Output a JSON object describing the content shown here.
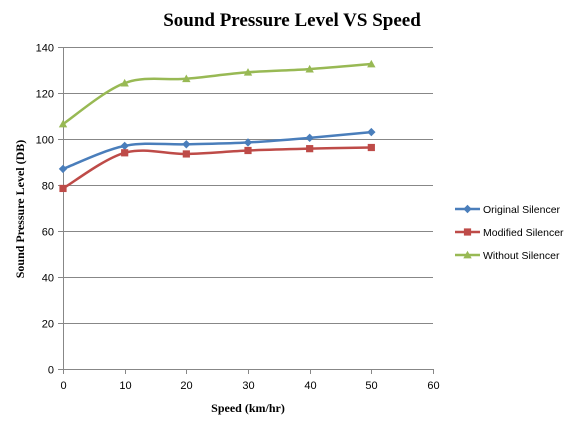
{
  "chart_data": {
    "type": "line",
    "title": "Sound Pressure Level VS Speed",
    "xlabel": "Speed (km/hr)",
    "ylabel": "Sound Pressure Level (DB)",
    "xlim": [
      0,
      60
    ],
    "ylim": [
      0,
      140
    ],
    "x_ticks": [
      "0",
      "10",
      "20",
      "30",
      "40",
      "50",
      "60"
    ],
    "y_ticks": [
      "0",
      "20",
      "40",
      "60",
      "80",
      "100",
      "120",
      "140"
    ],
    "grid": "horizontal",
    "smooth": true,
    "legend_position": "right",
    "x": [
      0,
      10,
      20,
      30,
      40,
      50
    ],
    "series": [
      {
        "name": "Original Silencer",
        "color": "#4a7ebb",
        "marker": "diamond",
        "values": [
          87,
          97,
          97.7,
          98.5,
          100.5,
          103
        ]
      },
      {
        "name": "Modified Silencer",
        "color": "#be4b48",
        "marker": "square",
        "values": [
          78.5,
          94,
          93.5,
          95,
          95.8,
          96.3
        ]
      },
      {
        "name": "Without Silencer",
        "color": "#98b954",
        "marker": "triangle",
        "values": [
          106.5,
          124.3,
          126.2,
          129,
          130.4,
          132.6
        ]
      }
    ]
  }
}
